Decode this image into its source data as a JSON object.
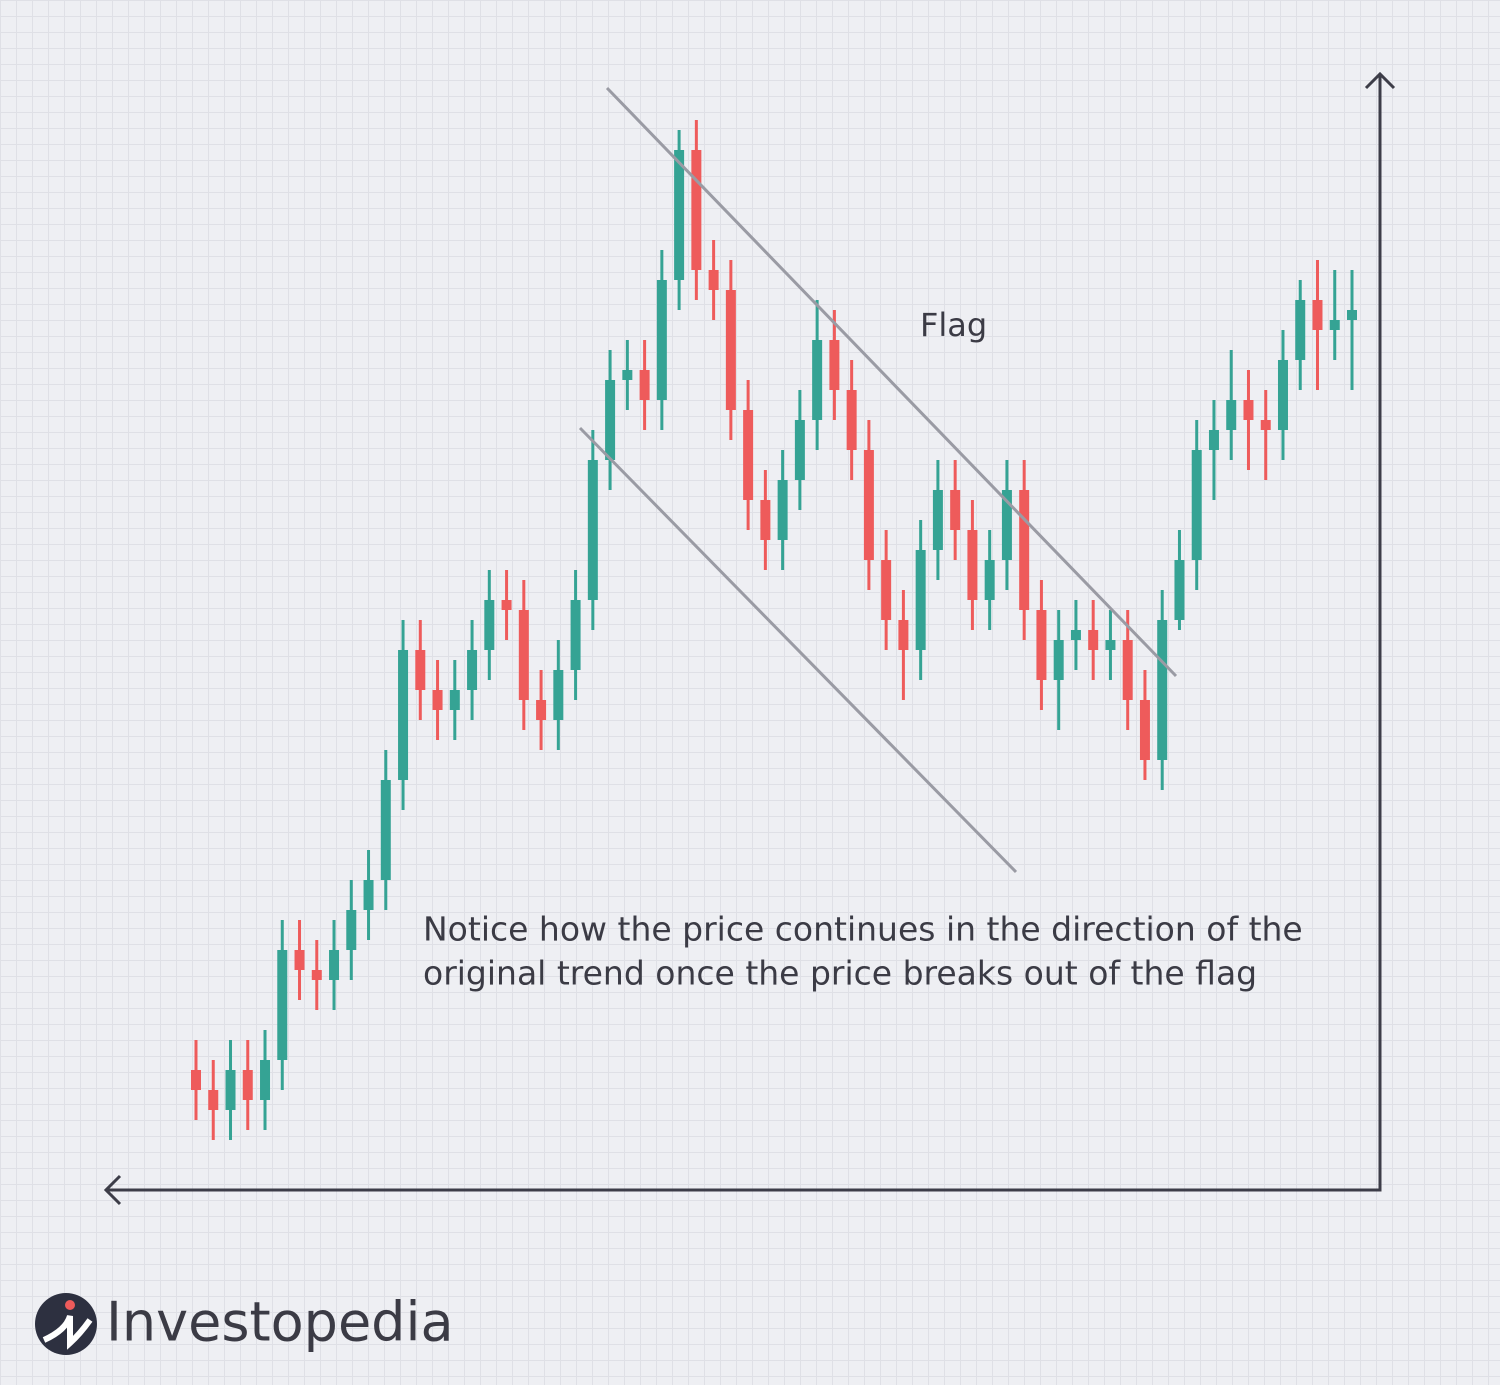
{
  "chart_data": {
    "type": "candlestick",
    "annotations": {
      "flag": "Flag",
      "note": [
        "Notice how the price continues in the direction of the",
        "original trend once the price breaks out of the flag"
      ]
    },
    "brand": "Investopedia",
    "up_color": "#35a394",
    "down_color": "#ee5b5b",
    "ylim": [
      0,
      111
    ],
    "open": [
      12,
      10,
      8,
      12,
      9,
      13,
      24,
      22,
      21,
      24,
      28,
      31,
      41,
      54,
      50,
      48,
      50,
      54,
      59,
      58,
      49,
      47,
      52,
      59,
      73,
      81,
      82,
      79,
      91,
      104,
      92,
      90,
      78,
      69,
      65,
      71,
      77,
      85,
      80,
      74,
      63,
      57,
      54,
      64,
      70,
      66,
      59,
      63,
      70,
      58,
      51,
      55,
      56,
      54,
      55,
      49,
      43,
      57,
      63,
      74,
      76,
      79,
      77,
      76,
      83,
      89,
      86,
      87
    ],
    "high": [
      15,
      13,
      15,
      15,
      16,
      27,
      27,
      25,
      27,
      31,
      34,
      44,
      57,
      57,
      53,
      53,
      57,
      62,
      62,
      61,
      52,
      55,
      62,
      76,
      84,
      85,
      85,
      94,
      106,
      107,
      95,
      93,
      81,
      72,
      74,
      80,
      89,
      88,
      83,
      77,
      66,
      60,
      67,
      73,
      73,
      69,
      66,
      73,
      73,
      61,
      58,
      59,
      59,
      58,
      58,
      52,
      60,
      66,
      77,
      79,
      84,
      82,
      80,
      86,
      91,
      93,
      92,
      92
    ],
    "low": [
      7,
      5,
      5,
      6,
      6,
      10,
      19,
      18,
      18,
      21,
      25,
      28,
      38,
      47,
      45,
      45,
      47,
      51,
      55,
      46,
      44,
      44,
      49,
      56,
      70,
      78,
      76,
      76,
      88,
      89,
      87,
      75,
      66,
      62,
      62,
      68,
      74,
      77,
      71,
      60,
      54,
      49,
      51,
      61,
      63,
      56,
      56,
      60,
      55,
      48,
      46,
      52,
      51,
      51,
      46,
      41,
      40,
      56,
      60,
      69,
      73,
      72,
      71,
      73,
      80,
      80,
      83,
      80
    ],
    "close": [
      10,
      8,
      12,
      9,
      13,
      24,
      22,
      21,
      24,
      28,
      31,
      41,
      54,
      50,
      48,
      50,
      54,
      59,
      58,
      49,
      47,
      52,
      59,
      73,
      81,
      82,
      79,
      91,
      104,
      92,
      90,
      78,
      69,
      65,
      71,
      77,
      85,
      80,
      74,
      63,
      57,
      54,
      64,
      70,
      66,
      59,
      63,
      70,
      58,
      51,
      55,
      56,
      54,
      55,
      49,
      43,
      57,
      63,
      74,
      76,
      79,
      77,
      76,
      83,
      89,
      86,
      87,
      88
    ]
  }
}
